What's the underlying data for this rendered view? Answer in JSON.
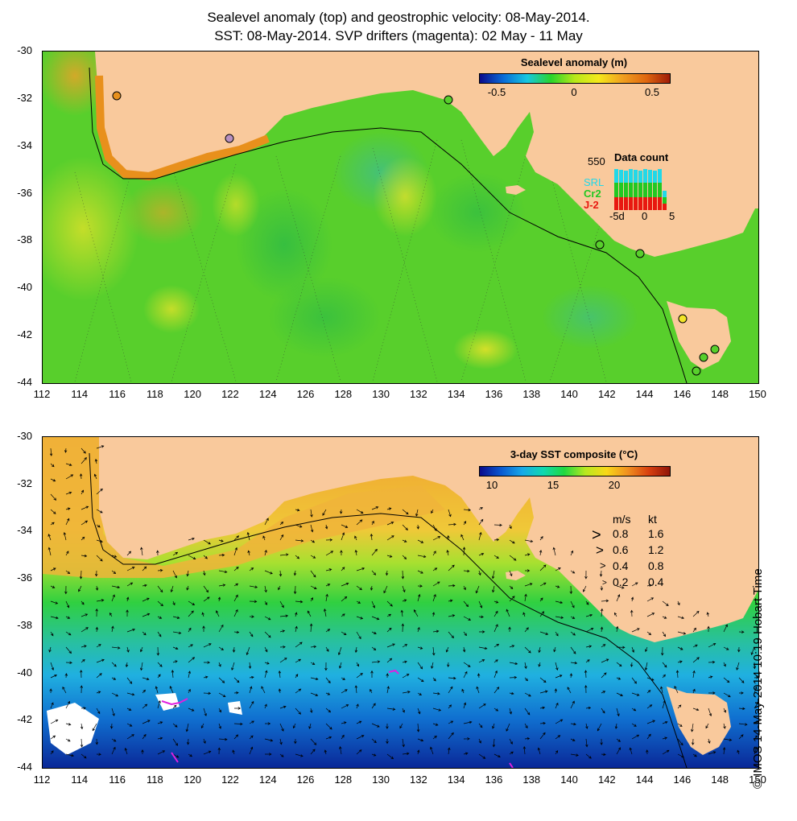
{
  "title": {
    "line1": "Sealevel anomaly (top) and geostrophic velocity: 08-May-2014.",
    "line2": "SST: 08-May-2014. SVP drifters (magenta): 02 May - 11 May"
  },
  "axes": {
    "y_labels": [
      "-30",
      "-32",
      "-34",
      "-36",
      "-38",
      "-40",
      "-42",
      "-44"
    ],
    "x_labels": [
      "112",
      "114",
      "116",
      "118",
      "120",
      "122",
      "124",
      "126",
      "128",
      "130",
      "132",
      "134",
      "136",
      "138",
      "140",
      "142",
      "144",
      "146",
      "148",
      "150"
    ]
  },
  "top_panel": {
    "colorbar_title": "Sealevel anomaly (m)",
    "colorbar_ticks": [
      "-0.5",
      "0",
      "0.5"
    ],
    "data_count": {
      "title": "Data count",
      "max_label": "550",
      "series": [
        {
          "name": "SRL",
          "color": "#22d8e8"
        },
        {
          "name": "Cr2",
          "color": "#22c822"
        },
        {
          "name": "J-2",
          "color": "#e81810"
        }
      ],
      "x_ticks": [
        "-5d",
        "0",
        "5"
      ]
    }
  },
  "bottom_panel": {
    "colorbar_title": "3-day SST composite (°C)",
    "colorbar_ticks": [
      "10",
      "15",
      "20"
    ],
    "speed_legend": {
      "header_ms": "m/s",
      "header_kt": "kt",
      "rows": [
        {
          "ms": "0.8",
          "kt": "1.6"
        },
        {
          "ms": "0.6",
          "kt": "1.2"
        },
        {
          "ms": "0.4",
          "kt": "0.8"
        },
        {
          "ms": "0.2",
          "kt": "0.4"
        }
      ]
    }
  },
  "credit": "© IMOS 14-May-2014 10:19 Hobart Time",
  "colors": {
    "land": "#f9c99c",
    "ocean_sla": "#55d12a",
    "ocean_sst_warm": "#f0b43a",
    "ocean_sst_mid": "#30d040",
    "ocean_sst_cool": "#20b8d8",
    "ocean_sst_cold": "#1040c0",
    "drifter": "#e020e0"
  }
}
